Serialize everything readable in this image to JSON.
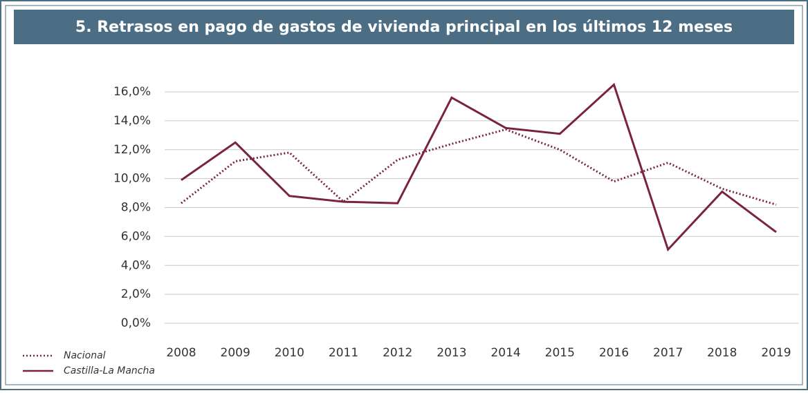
{
  "chart_data": {
    "type": "line",
    "title": "5. Retrasos en pago de gastos de vivienda principal en los últimos 12 meses",
    "categories": [
      "2008",
      "2009",
      "2010",
      "2011",
      "2012",
      "2013",
      "2014",
      "2015",
      "2016",
      "2017",
      "2018",
      "2019"
    ],
    "series": [
      {
        "name": "Nacional",
        "color": "#7a2245",
        "style": "dotted",
        "values": [
          8.3,
          11.2,
          11.8,
          8.4,
          11.3,
          12.4,
          13.4,
          12.0,
          9.8,
          11.1,
          9.3,
          8.2
        ]
      },
      {
        "name": "Castilla-La Mancha",
        "color": "#7a2245",
        "style": "solid",
        "values": [
          9.9,
          12.5,
          8.8,
          8.4,
          8.3,
          15.6,
          13.5,
          13.1,
          16.5,
          5.1,
          9.1,
          6.3
        ]
      }
    ],
    "ylim": [
      0,
      16
    ],
    "yticks": [
      {
        "value": 0,
        "label": "0,0%"
      },
      {
        "value": 2,
        "label": "2,0%"
      },
      {
        "value": 4,
        "label": "4,0%"
      },
      {
        "value": 6,
        "label": "6,0%"
      },
      {
        "value": 8,
        "label": "8,0%"
      },
      {
        "value": 10,
        "label": "10,0%"
      },
      {
        "value": 12,
        "label": "12,0%"
      },
      {
        "value": 14,
        "label": "14,0%"
      },
      {
        "value": 16,
        "label": "16,0%"
      }
    ],
    "grid": true
  }
}
